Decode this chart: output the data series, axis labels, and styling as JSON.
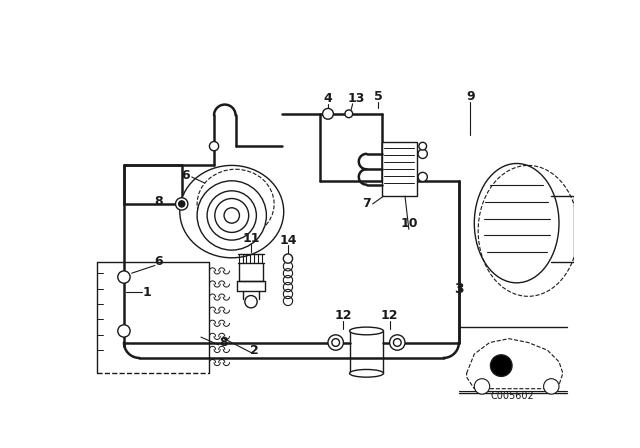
{
  "bg_color": "#ffffff",
  "line_color": "#1a1a1a",
  "diagram_code": "C005602",
  "fig_w": 6.4,
  "fig_h": 4.48,
  "dpi": 100
}
